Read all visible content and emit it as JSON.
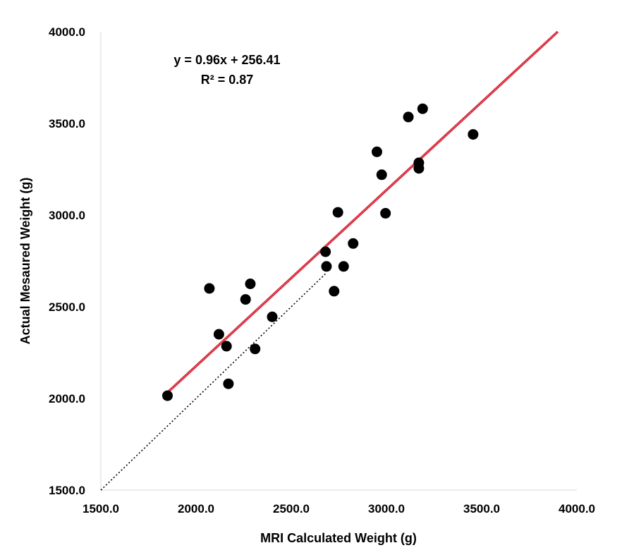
{
  "chart_data": {
    "type": "scatter",
    "title": "",
    "xlabel": "MRI Calculated Weight (g)",
    "ylabel": "Actual Mesaured Weight (g)",
    "xlim": [
      1500,
      4000
    ],
    "ylim": [
      1500,
      4000
    ],
    "xticks": [
      "1500.0",
      "2000.0",
      "2500.0",
      "3000.0",
      "3500.0",
      "4000.0"
    ],
    "yticks": [
      "1500.0",
      "2000.0",
      "2500.0",
      "3000.0",
      "3500.0",
      "4000.0"
    ],
    "grid": false,
    "legend": "none",
    "points": [
      {
        "x": 1850,
        "y": 2015
      },
      {
        "x": 2070,
        "y": 2600
      },
      {
        "x": 2120,
        "y": 2350
      },
      {
        "x": 2160,
        "y": 2285
      },
      {
        "x": 2170,
        "y": 2080
      },
      {
        "x": 2260,
        "y": 2540
      },
      {
        "x": 2285,
        "y": 2625
      },
      {
        "x": 2310,
        "y": 2270
      },
      {
        "x": 2400,
        "y": 2445
      },
      {
        "x": 2680,
        "y": 2800
      },
      {
        "x": 2685,
        "y": 2720
      },
      {
        "x": 2725,
        "y": 2585
      },
      {
        "x": 2745,
        "y": 3015
      },
      {
        "x": 2775,
        "y": 2720
      },
      {
        "x": 2825,
        "y": 2845
      },
      {
        "x": 2950,
        "y": 3345
      },
      {
        "x": 2975,
        "y": 3220
      },
      {
        "x": 2995,
        "y": 3010
      },
      {
        "x": 3115,
        "y": 3535
      },
      {
        "x": 3170,
        "y": 3285
      },
      {
        "x": 3170,
        "y": 3255
      },
      {
        "x": 3190,
        "y": 3580
      },
      {
        "x": 3455,
        "y": 3440
      }
    ],
    "trendline": {
      "slope": 0.96,
      "intercept": 256.41,
      "x_start": 1850,
      "x_end": 3900,
      "color": "#d62839",
      "equation": "y = 0.96x + 256.41",
      "r_squared": "R² = 0.87"
    },
    "identity_line": {
      "x_start": 1500,
      "x_end": 2680,
      "style": "dotted",
      "color": "#000000"
    },
    "point_color": "#000000"
  }
}
